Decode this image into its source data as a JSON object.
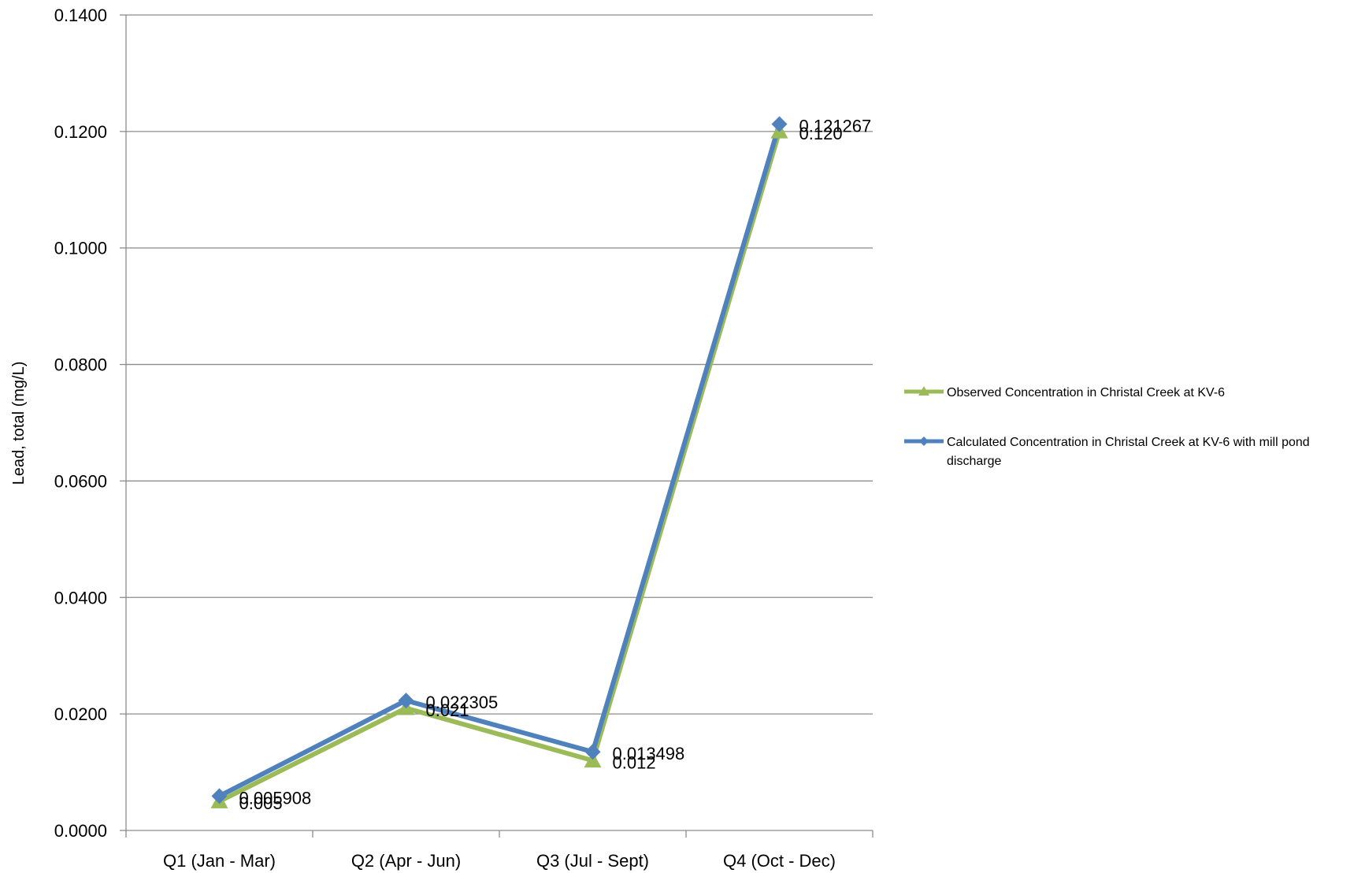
{
  "chart_data": {
    "type": "line",
    "title": "",
    "xlabel": "",
    "ylabel": "Lead, total (mg/L)",
    "categories": [
      "Q1 (Jan - Mar)",
      "Q2 (Apr - Jun)",
      "Q3 (Jul - Sept)",
      "Q4 (Oct - Dec)"
    ],
    "ylim": [
      0,
      0.14
    ],
    "yticks": [
      "0.0000",
      "0.0200",
      "0.0400",
      "0.0600",
      "0.0800",
      "0.1000",
      "0.1200",
      "0.1400"
    ],
    "grid": "horizontal",
    "legend_position": "right",
    "series": [
      {
        "name": "Observed Concentration in Christal Creek at KV-6",
        "legend_lines": [
          "Observed Concentration in Christal Creek at KV-6"
        ],
        "values": [
          0.005,
          0.021,
          0.012,
          0.12
        ],
        "labels": [
          "0.005",
          "0.021",
          "0.012",
          "0.120"
        ],
        "color": "#9BBB59",
        "marker": "triangle"
      },
      {
        "name": "Calculated Concentration in Christal Creek at KV-6 with mill pond discharge",
        "legend_lines": [
          "Calculated Concentration in Christal Creek at KV-6 with mill pond",
          "discharge"
        ],
        "values": [
          0.005908,
          0.022305,
          0.013498,
          0.121267
        ],
        "labels": [
          "0.005908",
          "0.022305",
          "0.013498",
          "0.121267"
        ],
        "color": "#4F81BD",
        "marker": "diamond"
      }
    ]
  }
}
